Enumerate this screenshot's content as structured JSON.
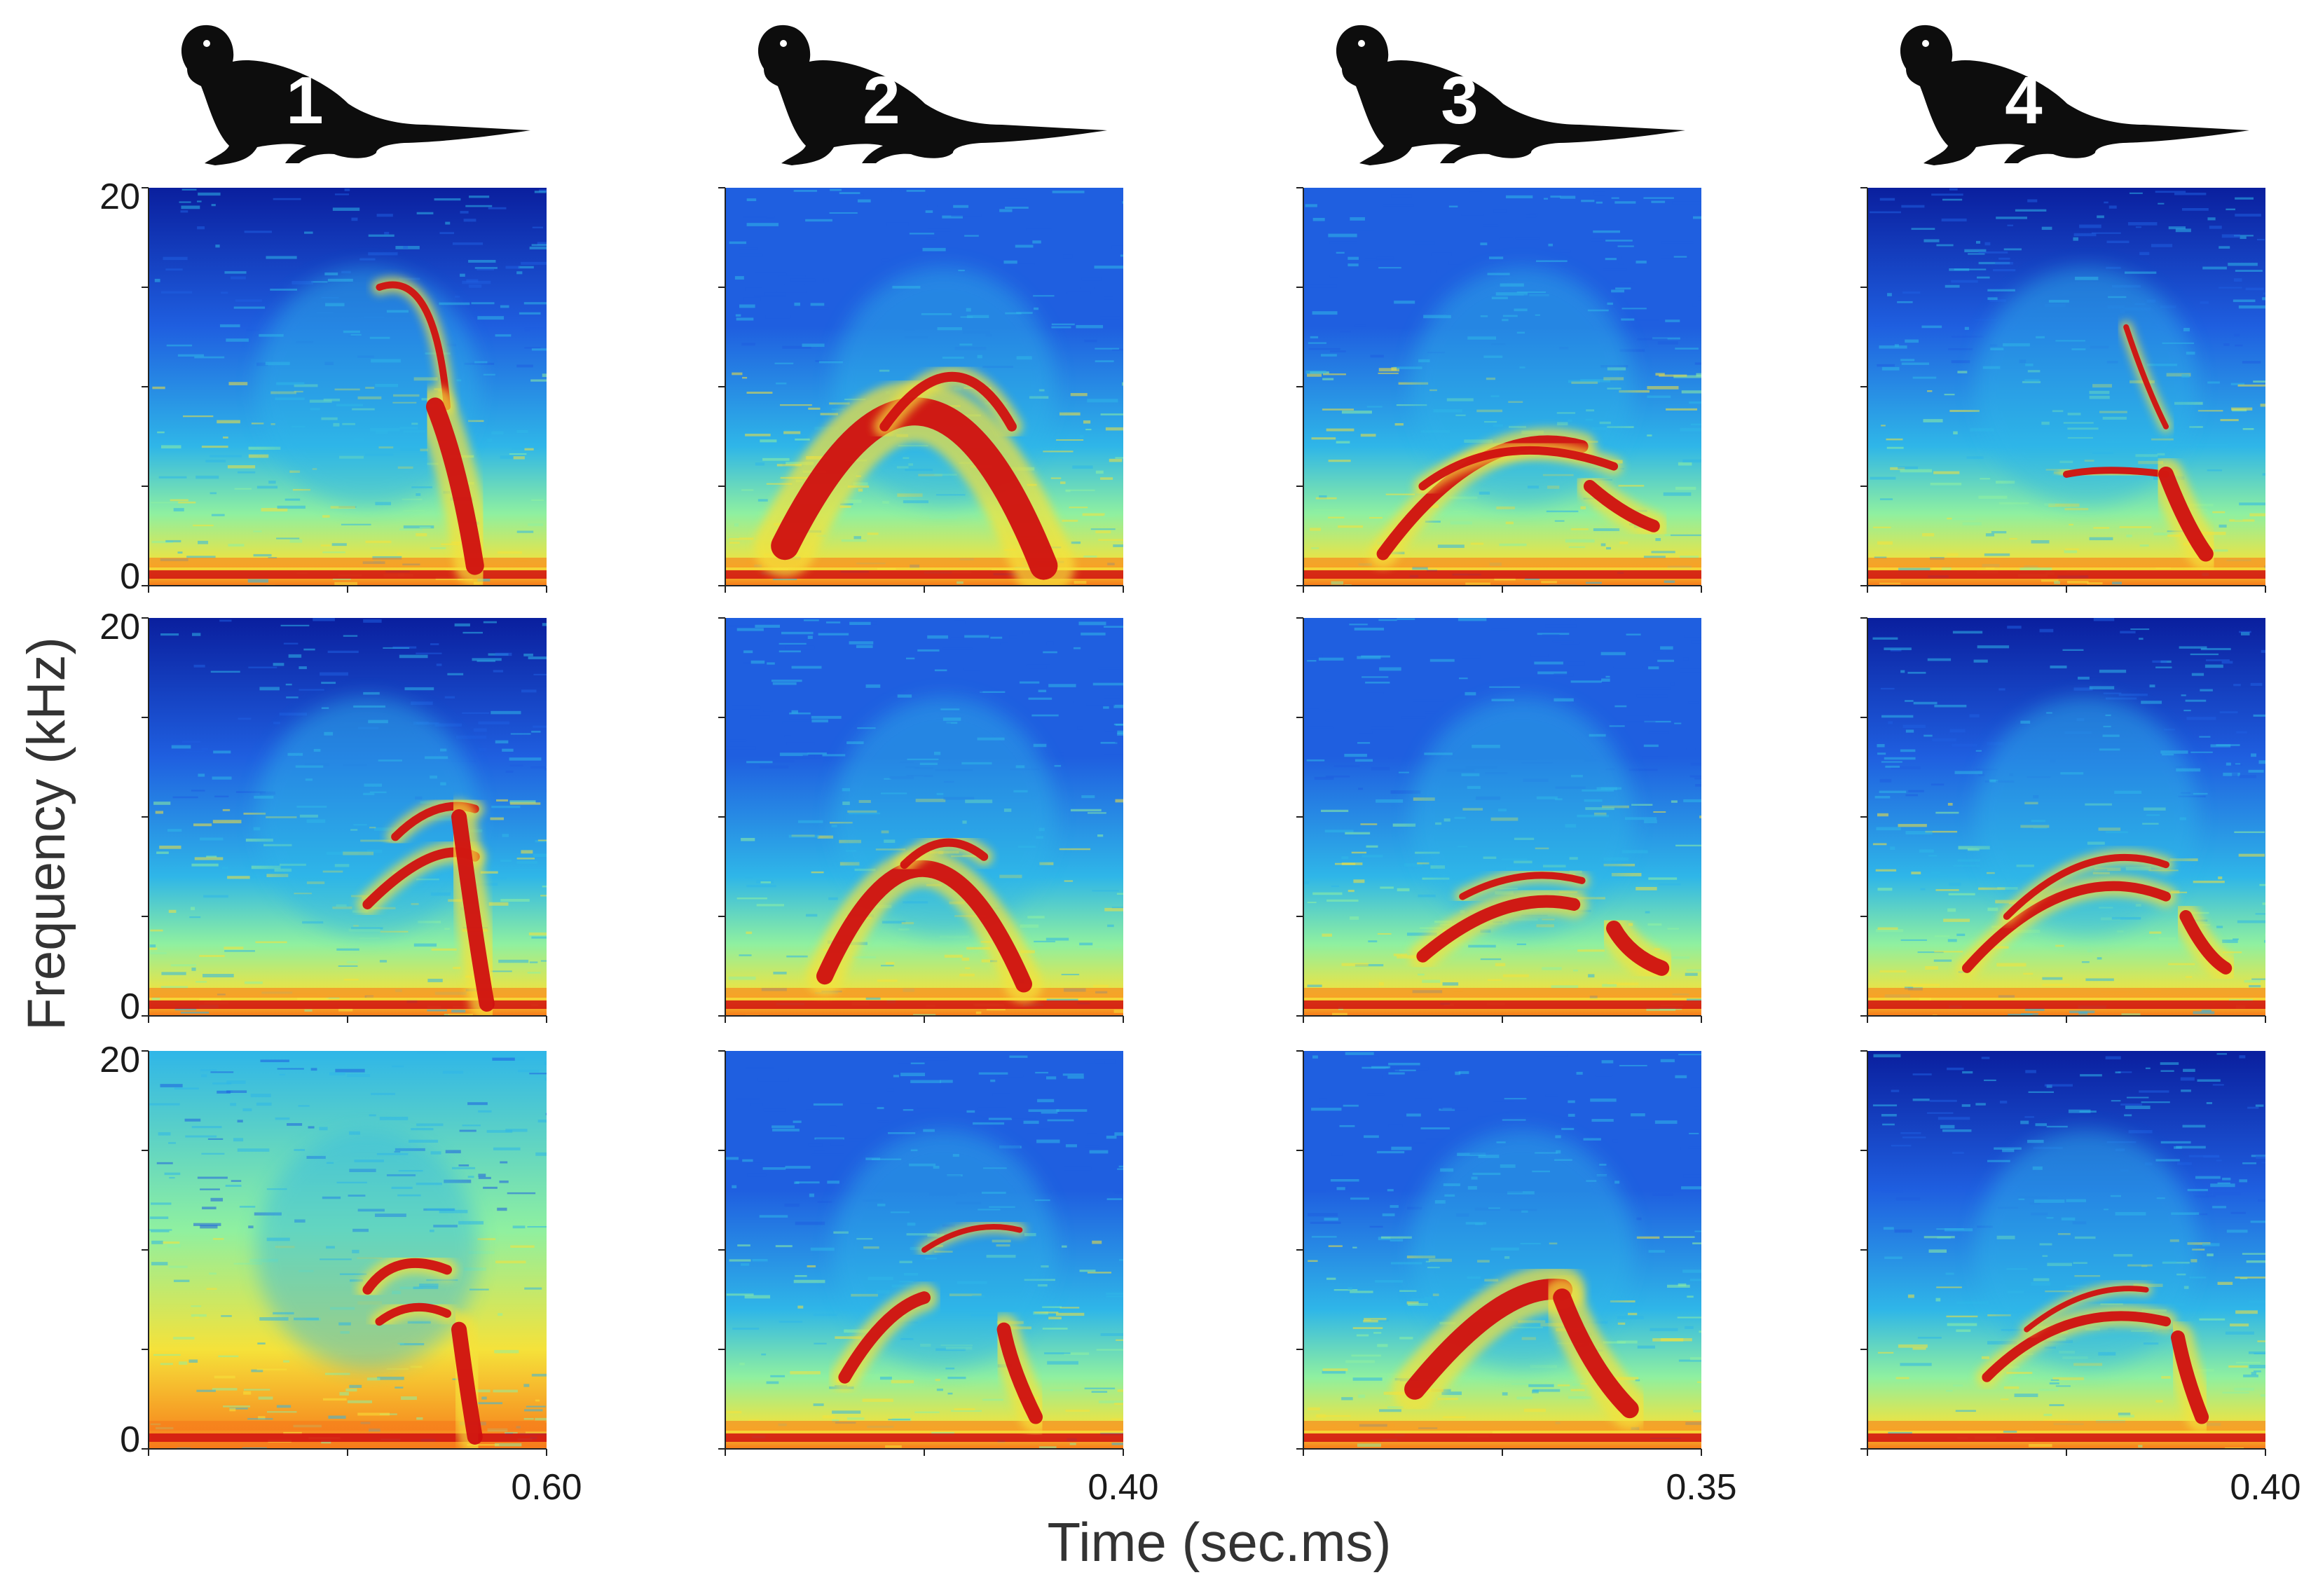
{
  "figure": {
    "ylabel": "Frequency (kHz)",
    "xlabel": "Time (sec.ms)"
  },
  "chart_data": {
    "type": "heatmap",
    "description_kind": "spectrogram grid",
    "rows": 3,
    "colormap": [
      "#0a1f9e",
      "#1f5fe0",
      "#2fb6e8",
      "#8ff0a0",
      "#f5e23a",
      "#f77a1a",
      "#d01010"
    ],
    "y_ticks": [
      "20",
      "0"
    ],
    "ylim": [
      0,
      20
    ],
    "columns": [
      {
        "individual": "1",
        "x_end_label": "0.60",
        "xlim": [
          0,
          0.6
        ]
      },
      {
        "individual": "2",
        "x_end_label": "0.40",
        "xlim": [
          0,
          0.4
        ]
      },
      {
        "individual": "3",
        "x_end_label": "0.35",
        "xlim": [
          0,
          0.35
        ]
      },
      {
        "individual": "4",
        "x_end_label": "0.40",
        "xlim": [
          0,
          0.4
        ]
      }
    ]
  }
}
